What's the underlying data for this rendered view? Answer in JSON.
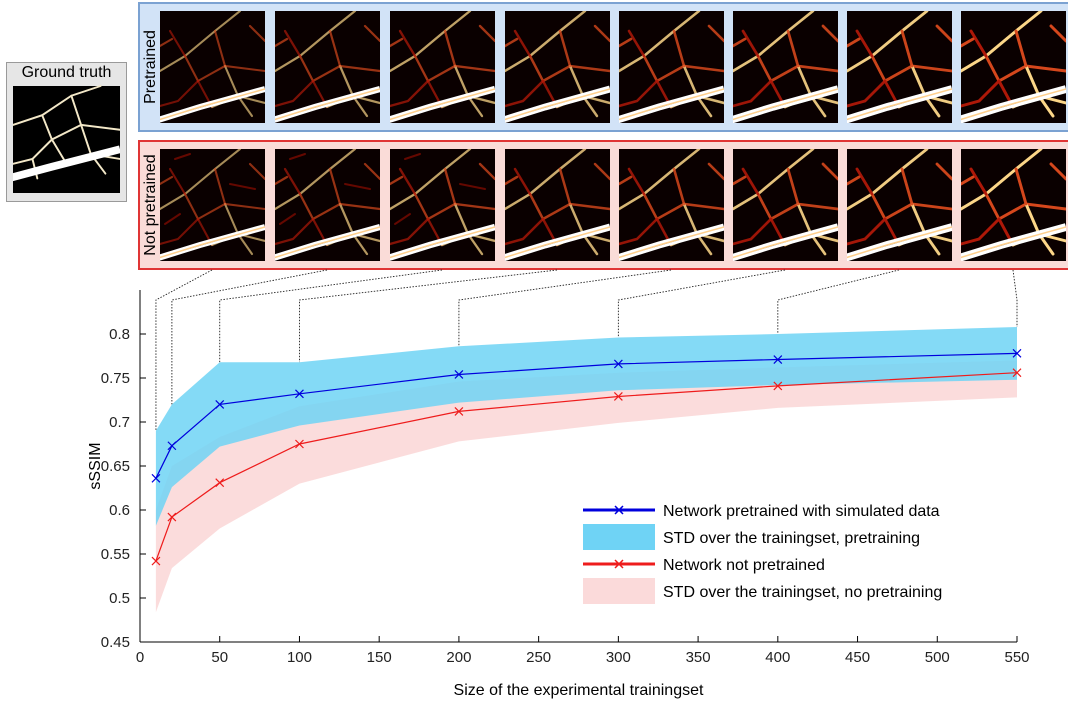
{
  "ground_truth_label": "Ground truth",
  "row_labels": {
    "pretrained": "Pretrained",
    "not_pretrained": "Not pretrained"
  },
  "colors": {
    "pretrained_line": "#0000dd",
    "pretrained_band": "#6fd3f5",
    "not_pretrained_line": "#ee1c1c",
    "not_pretrained_band": "#fbdada",
    "pretrained_frame": "#7ba2d2",
    "not_pretrained_frame": "#e03535"
  },
  "chart_data": {
    "type": "line",
    "xlabel": "Size of the experimental trainingset",
    "ylabel": "sSSIM",
    "xlim": [
      0,
      550
    ],
    "ylim": [
      0.45,
      0.85
    ],
    "xticks": [
      0,
      50,
      100,
      150,
      200,
      250,
      300,
      350,
      400,
      450,
      500,
      550
    ],
    "yticks": [
      0.45,
      0.5,
      0.55,
      0.6,
      0.65,
      0.7,
      0.75,
      0.8
    ],
    "x": [
      10,
      20,
      50,
      100,
      200,
      300,
      400,
      550
    ],
    "grid": false,
    "legend_position": "bottom-right",
    "series": [
      {
        "name": "Network pretrained with simulated data",
        "values": [
          0.636,
          0.673,
          0.72,
          0.732,
          0.754,
          0.766,
          0.771,
          0.778
        ],
        "band_name": "STD over the trainingset, pretraining",
        "upper": [
          0.69,
          0.72,
          0.768,
          0.768,
          0.786,
          0.796,
          0.8,
          0.808
        ],
        "lower": [
          0.582,
          0.626,
          0.672,
          0.696,
          0.722,
          0.736,
          0.742,
          0.748
        ]
      },
      {
        "name": "Network not pretrained",
        "values": [
          0.542,
          0.592,
          0.631,
          0.675,
          0.712,
          0.729,
          0.741,
          0.756
        ],
        "band_name": "STD over the trainingset, no pretraining",
        "upper": [
          0.6,
          0.65,
          0.683,
          0.718,
          0.746,
          0.756,
          0.762,
          0.77
        ],
        "lower": [
          0.484,
          0.534,
          0.579,
          0.63,
          0.678,
          0.699,
          0.716,
          0.728
        ]
      }
    ]
  }
}
